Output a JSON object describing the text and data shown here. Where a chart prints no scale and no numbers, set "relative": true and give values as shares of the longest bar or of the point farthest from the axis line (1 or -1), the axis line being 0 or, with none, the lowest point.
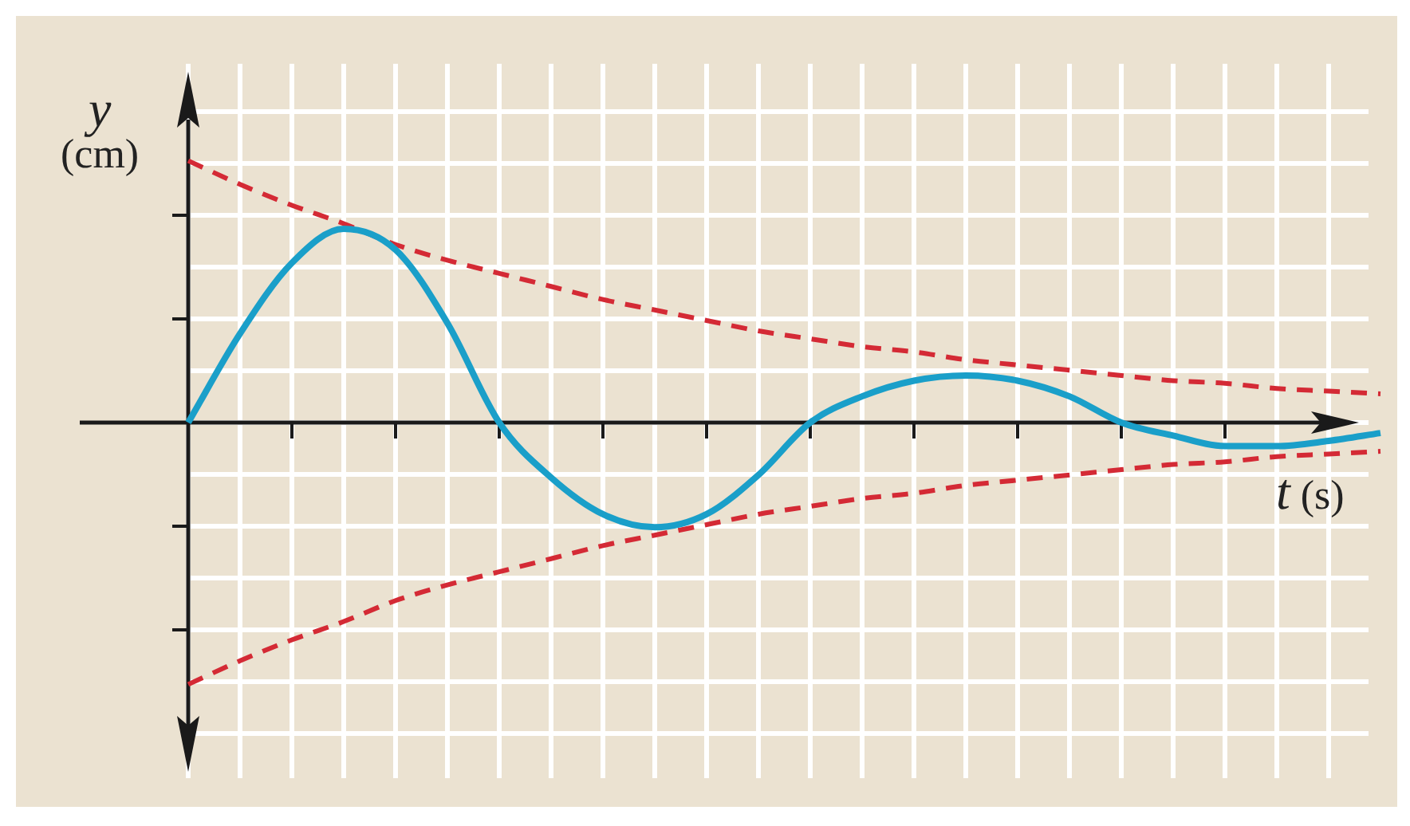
{
  "chart_data": {
    "type": "line",
    "relative": true,
    "xlabel": "t (s)",
    "ylabel": "y (cm)",
    "grid": true,
    "legend": false,
    "categories": [
      null,
      null,
      null,
      null,
      null,
      null,
      null,
      null,
      null,
      null,
      null,
      null,
      null,
      null,
      null,
      null,
      null,
      null,
      null,
      null,
      null,
      null,
      null,
      null
    ],
    "series": [
      {
        "color": "#1a9fc9",
        "line_style": "solid",
        "values": [
          0,
          0.34,
          0.61,
          0.74,
          0.66,
          0.38,
          0,
          -0.21,
          -0.35,
          -0.4,
          -0.35,
          -0.2,
          0,
          0.1,
          0.16,
          0.18,
          0.16,
          0.1,
          0,
          -0.05,
          -0.09,
          -0.09,
          -0.07,
          -0.04
        ]
      },
      {
        "color": "#d42a35",
        "line_style": "dashed",
        "values": [
          1,
          0.91,
          0.83,
          0.76,
          0.68,
          0.62,
          0.57,
          0.52,
          0.47,
          0.43,
          0.39,
          0.35,
          0.32,
          0.29,
          0.27,
          0.24,
          0.22,
          0.2,
          0.18,
          0.16,
          0.15,
          0.13,
          0.12,
          0.11
        ]
      },
      {
        "color": "#d42a35",
        "line_style": "dashed",
        "values": [
          -1,
          -0.91,
          -0.83,
          -0.76,
          -0.68,
          -0.62,
          -0.57,
          -0.52,
          -0.47,
          -0.43,
          -0.39,
          -0.35,
          -0.32,
          -0.29,
          -0.27,
          -0.24,
          -0.22,
          -0.2,
          -0.18,
          -0.16,
          -0.15,
          -0.13,
          -0.12,
          -0.11
        ]
      }
    ]
  }
}
